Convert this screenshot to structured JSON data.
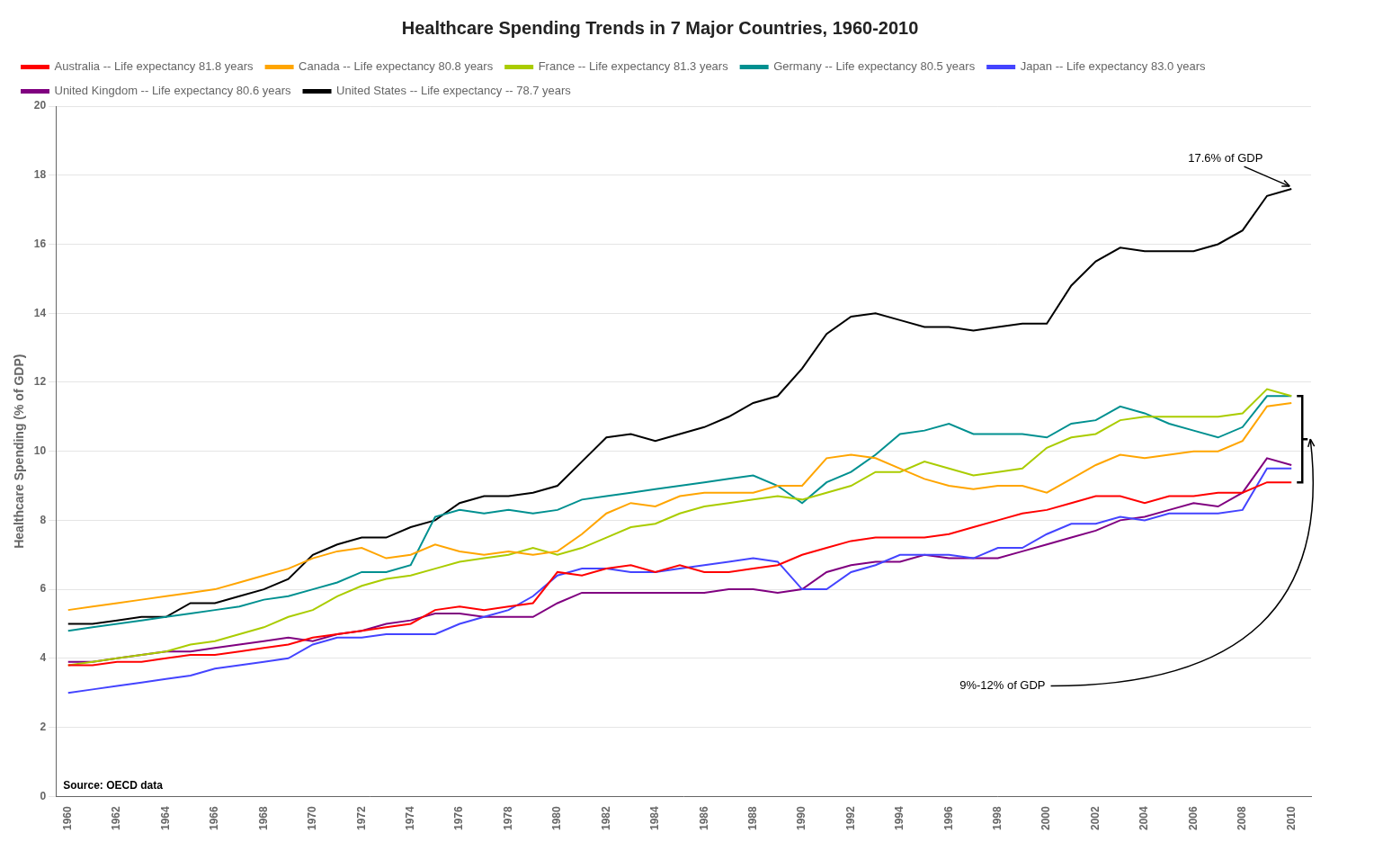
{
  "chart_data": {
    "type": "line",
    "title": "Healthcare Spending Trends in 7 Major Countries, 1960-2010",
    "ylabel": "Healthcare Spending (% of GDP)",
    "x": [
      1960,
      1961,
      1962,
      1963,
      1964,
      1965,
      1966,
      1967,
      1968,
      1969,
      1970,
      1971,
      1972,
      1973,
      1974,
      1975,
      1976,
      1977,
      1978,
      1979,
      1980,
      1981,
      1982,
      1983,
      1984,
      1985,
      1986,
      1987,
      1988,
      1989,
      1990,
      1991,
      1992,
      1993,
      1994,
      1995,
      1996,
      1997,
      1998,
      1999,
      2000,
      2001,
      2002,
      2003,
      2004,
      2005,
      2006,
      2007,
      2008,
      2009,
      2010
    ],
    "series": [
      {
        "name": "Australia -- Life expectancy 81.8 years",
        "color": "#ff0000",
        "values": [
          3.8,
          3.8,
          3.9,
          3.9,
          4.0,
          4.1,
          4.1,
          4.2,
          4.3,
          4.4,
          4.6,
          4.7,
          4.8,
          4.9,
          5.0,
          5.4,
          5.5,
          5.4,
          5.5,
          5.6,
          6.5,
          6.4,
          6.6,
          6.7,
          6.5,
          6.7,
          6.5,
          6.5,
          6.6,
          6.7,
          7.0,
          7.2,
          7.4,
          7.5,
          7.5,
          7.5,
          7.6,
          7.8,
          8.0,
          8.2,
          8.3,
          8.5,
          8.7,
          8.7,
          8.5,
          8.7,
          8.7,
          8.8,
          8.8,
          9.1,
          9.1
        ]
      },
      {
        "name": "Canada -- Life expectancy 80.8 years",
        "color": "#ffa500",
        "values": [
          5.4,
          5.5,
          5.6,
          5.7,
          5.8,
          5.9,
          6.0,
          6.2,
          6.4,
          6.6,
          6.9,
          7.1,
          7.2,
          6.9,
          7.0,
          7.3,
          7.1,
          7.0,
          7.1,
          7.0,
          7.1,
          7.6,
          8.2,
          8.5,
          8.4,
          8.7,
          8.8,
          8.8,
          8.8,
          9.0,
          9.0,
          9.8,
          9.9,
          9.8,
          9.5,
          9.2,
          9.0,
          8.9,
          9.0,
          9.0,
          8.8,
          9.2,
          9.6,
          9.9,
          9.8,
          9.9,
          10.0,
          10.0,
          10.3,
          11.3,
          11.4
        ]
      },
      {
        "name": "France -- Life expectancy 81.3 years",
        "color": "#aacc00",
        "values": [
          3.8,
          3.9,
          4.0,
          4.1,
          4.2,
          4.4,
          4.5,
          4.7,
          4.9,
          5.2,
          5.4,
          5.8,
          6.1,
          6.3,
          6.4,
          6.6,
          6.8,
          6.9,
          7.0,
          7.2,
          7.0,
          7.2,
          7.5,
          7.8,
          7.9,
          8.2,
          8.4,
          8.5,
          8.6,
          8.7,
          8.6,
          8.8,
          9.0,
          9.4,
          9.4,
          9.7,
          9.5,
          9.3,
          9.4,
          9.5,
          10.1,
          10.4,
          10.5,
          10.9,
          11.0,
          11.0,
          11.0,
          11.0,
          11.1,
          11.8,
          11.6
        ]
      },
      {
        "name": "Germany -- Life expectancy 80.5 years",
        "color": "#009090",
        "values": [
          4.8,
          4.9,
          5.0,
          5.1,
          5.2,
          5.3,
          5.4,
          5.5,
          5.7,
          5.8,
          6.0,
          6.2,
          6.5,
          6.5,
          6.7,
          8.1,
          8.3,
          8.2,
          8.3,
          8.2,
          8.3,
          8.6,
          8.7,
          8.8,
          8.9,
          9.0,
          9.1,
          9.2,
          9.3,
          9.0,
          8.5,
          9.1,
          9.4,
          9.9,
          10.5,
          10.6,
          10.8,
          10.5,
          10.5,
          10.5,
          10.4,
          10.8,
          10.9,
          11.3,
          11.1,
          10.8,
          10.6,
          10.4,
          10.7,
          11.6,
          11.6
        ]
      },
      {
        "name": "Japan -- Life expectancy 83.0 years",
        "color": "#4444ff",
        "values": [
          3.0,
          3.1,
          3.2,
          3.3,
          3.4,
          3.5,
          3.7,
          3.8,
          3.9,
          4.0,
          4.4,
          4.6,
          4.6,
          4.7,
          4.7,
          4.7,
          5.0,
          5.2,
          5.4,
          5.8,
          6.4,
          6.6,
          6.6,
          6.5,
          6.5,
          6.6,
          6.7,
          6.8,
          6.9,
          6.8,
          6.0,
          6.0,
          6.5,
          6.7,
          7.0,
          7.0,
          7.0,
          6.9,
          7.2,
          7.2,
          7.6,
          7.9,
          7.9,
          8.1,
          8.0,
          8.2,
          8.2,
          8.2,
          8.3,
          9.5,
          9.5
        ]
      },
      {
        "name": "United Kingdom -- Life expectancy 80.6 years",
        "color": "#800080",
        "values": [
          3.9,
          3.9,
          4.0,
          4.1,
          4.2,
          4.2,
          4.3,
          4.4,
          4.5,
          4.6,
          4.5,
          4.7,
          4.8,
          5.0,
          5.1,
          5.3,
          5.3,
          5.2,
          5.2,
          5.2,
          5.6,
          5.9,
          5.9,
          5.9,
          5.9,
          5.9,
          5.9,
          6.0,
          6.0,
          5.9,
          6.0,
          6.5,
          6.7,
          6.8,
          6.8,
          7.0,
          6.9,
          6.9,
          6.9,
          7.1,
          7.3,
          7.5,
          7.7,
          8.0,
          8.1,
          8.3,
          8.5,
          8.4,
          8.8,
          9.8,
          9.6
        ]
      },
      {
        "name": "United States -- Life expectancy -- 78.7 years",
        "color": "#000000",
        "values": [
          5.0,
          5.0,
          5.1,
          5.2,
          5.2,
          5.6,
          5.6,
          5.8,
          6.0,
          6.3,
          7.0,
          7.3,
          7.5,
          7.5,
          7.8,
          8.0,
          8.5,
          8.7,
          8.7,
          8.8,
          9.0,
          9.7,
          10.4,
          10.5,
          10.3,
          10.5,
          10.7,
          11.0,
          11.4,
          11.6,
          12.4,
          13.4,
          13.9,
          14.0,
          13.8,
          13.6,
          13.6,
          13.5,
          13.6,
          13.7,
          13.7,
          14.8,
          15.5,
          15.9,
          15.8,
          15.8,
          15.8,
          16.0,
          16.4,
          17.4,
          17.6
        ]
      }
    ],
    "xlim": [
      1959.5,
      2010.8
    ],
    "xticks": [
      1960,
      1962,
      1964,
      1966,
      1968,
      1970,
      1972,
      1974,
      1976,
      1978,
      1980,
      1982,
      1984,
      1986,
      1988,
      1990,
      1992,
      1994,
      1996,
      1998,
      2000,
      2002,
      2004,
      2006,
      2008,
      2010
    ],
    "ylim": [
      0,
      20
    ],
    "yticks": [
      0,
      2,
      4,
      6,
      8,
      10,
      12,
      14,
      16,
      18,
      20
    ],
    "grid": "y",
    "legend": "upper left",
    "annotations": [
      "Source: OECD data",
      "17.6% of GDP",
      "9%-12% of GDP"
    ]
  }
}
